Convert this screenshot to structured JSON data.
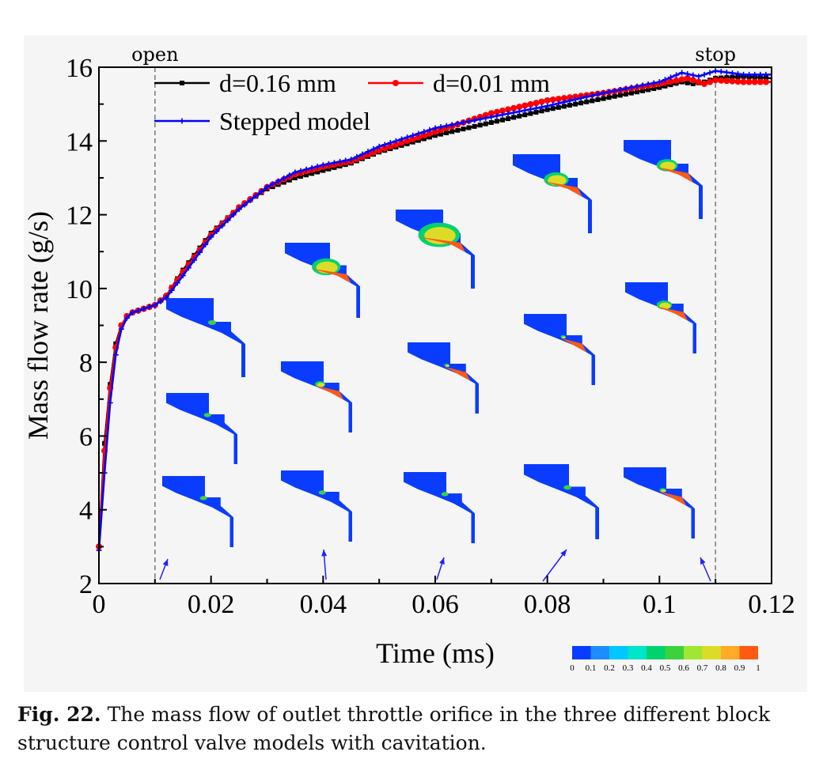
{
  "chart_data": {
    "type": "line",
    "xlabel": "Time (ms)",
    "ylabel": "Mass flow rate (g/s)",
    "xlim": [
      0,
      0.12
    ],
    "ylim": [
      2,
      16
    ],
    "xticks": [
      "0",
      "0.02",
      "0.04",
      "0.06",
      "0.08",
      "0.1",
      "0.12"
    ],
    "xtick_values": [
      0,
      0.02,
      0.04,
      0.06,
      0.08,
      0.1,
      0.12
    ],
    "yticks": [
      "2",
      "4",
      "6",
      "8",
      "10",
      "12",
      "14",
      "16"
    ],
    "ytick_values": [
      2,
      4,
      6,
      8,
      10,
      12,
      14,
      16
    ],
    "legend_position": "top-left",
    "grid": false,
    "annotations": [
      {
        "text": "open",
        "x": 0.01
      },
      {
        "text": "stop",
        "x": 0.11
      }
    ],
    "series": [
      {
        "name": "d=0.16 mm",
        "color": "#000000",
        "marker": "square",
        "x": [
          0,
          0.001,
          0.002,
          0.003,
          0.004,
          0.005,
          0.006,
          0.008,
          0.01,
          0.012,
          0.015,
          0.02,
          0.025,
          0.03,
          0.035,
          0.04,
          0.045,
          0.05,
          0.06,
          0.07,
          0.08,
          0.09,
          0.1,
          0.104,
          0.106,
          0.108,
          0.11,
          0.115,
          0.12
        ],
        "y": [
          3.0,
          5.8,
          7.4,
          8.5,
          9.0,
          9.25,
          9.35,
          9.45,
          9.55,
          9.8,
          10.5,
          11.5,
          12.2,
          12.7,
          13.0,
          13.2,
          13.4,
          13.7,
          14.15,
          14.5,
          14.85,
          15.15,
          15.45,
          15.6,
          15.55,
          15.6,
          15.7,
          15.75,
          15.7
        ]
      },
      {
        "name": "d=0.01 mm",
        "color": "#ff0000",
        "marker": "circle",
        "x": [
          0,
          0.001,
          0.002,
          0.003,
          0.004,
          0.005,
          0.006,
          0.008,
          0.01,
          0.012,
          0.015,
          0.02,
          0.025,
          0.03,
          0.035,
          0.04,
          0.045,
          0.05,
          0.06,
          0.07,
          0.08,
          0.09,
          0.1,
          0.105,
          0.108,
          0.11,
          0.115,
          0.12
        ],
        "y": [
          3.0,
          5.6,
          7.3,
          8.4,
          9.0,
          9.25,
          9.35,
          9.45,
          9.55,
          9.8,
          10.45,
          11.45,
          12.2,
          12.75,
          13.1,
          13.3,
          13.45,
          13.75,
          14.25,
          14.75,
          15.1,
          15.3,
          15.55,
          15.7,
          15.55,
          15.65,
          15.6,
          15.6
        ]
      },
      {
        "name": "Stepped model",
        "color": "#0000ff",
        "marker": "star",
        "x": [
          0,
          0.001,
          0.002,
          0.003,
          0.004,
          0.005,
          0.006,
          0.008,
          0.01,
          0.012,
          0.015,
          0.02,
          0.025,
          0.03,
          0.035,
          0.04,
          0.045,
          0.05,
          0.06,
          0.07,
          0.08,
          0.09,
          0.1,
          0.104,
          0.107,
          0.11,
          0.115,
          0.12
        ],
        "y": [
          2.9,
          5.0,
          6.9,
          8.2,
          8.9,
          9.2,
          9.35,
          9.45,
          9.55,
          9.75,
          10.35,
          11.4,
          12.15,
          12.75,
          13.15,
          13.35,
          13.5,
          13.85,
          14.35,
          14.65,
          14.95,
          15.3,
          15.6,
          15.85,
          15.75,
          15.9,
          15.8,
          15.8
        ]
      }
    ],
    "colorbar": {
      "ticks": [
        "0",
        "0.1",
        "0.2",
        "0.3",
        "0.4",
        "0.5",
        "0.6",
        "0.7",
        "0.8",
        "0.9",
        "1"
      ],
      "colors": [
        "#0a3cff",
        "#1e8cff",
        "#00c8ff",
        "#00e6c8",
        "#00d26e",
        "#3cd23c",
        "#a0e632",
        "#dcdc28",
        "#ffaa28",
        "#ff5a14"
      ]
    }
  },
  "caption": {
    "label": "Fig. 22.",
    "text": " The mass flow of outlet throttle orifice in the three different block structure control valve models with cavitation."
  }
}
